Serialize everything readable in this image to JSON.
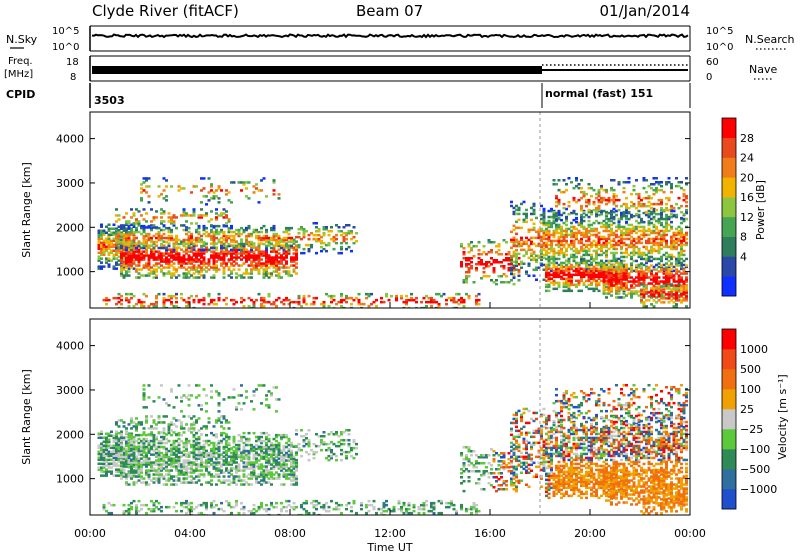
{
  "header": {
    "station": "Clyde River (fitACF)",
    "beam": "Beam 07",
    "date": "01/Jan/2014"
  },
  "param_panels": {
    "nsky_label": "N.Sky",
    "nsearch_label": "N.Search",
    "nsky_ticks": [
      "10^5",
      "10^0"
    ],
    "nsearch_ticks": [
      "10^5",
      "10^0"
    ],
    "freq_label_1": "Freq.",
    "freq_label_2": "[MHz]",
    "freq_ticks": [
      "18",
      "8"
    ],
    "nave_label": "Nave",
    "nave_ticks": [
      "60",
      "0"
    ],
    "cpid_label": "CPID",
    "cpid_value_1": "3503",
    "cpid_value_2": "normal (fast) 151",
    "cpid_change_hour": 18.0
  },
  "chart_data": [
    {
      "type": "heatmap",
      "panel": "power",
      "xlabel": "",
      "ylabel": "Slant Range [km]",
      "xlim": [
        0,
        24
      ],
      "ylim": [
        180,
        4600
      ],
      "yticks": [
        "4000",
        "3000",
        "2000",
        "1000"
      ],
      "colorbar": {
        "label": "Power [dB]",
        "ticks": [
          "28",
          "24",
          "20",
          "16",
          "12",
          "8",
          "4"
        ],
        "colors": [
          "#1030ff",
          "#2a48a8",
          "#2e7d5c",
          "#45a552",
          "#8cc63f",
          "#f0b400",
          "#f07d1a",
          "#e84a1e",
          "#ff0000"
        ]
      }
    },
    {
      "type": "heatmap",
      "panel": "velocity",
      "xlabel": "Time UT",
      "ylabel": "Slant Range [km]",
      "xlim": [
        0,
        24
      ],
      "ylim": [
        180,
        4600
      ],
      "yticks": [
        "4000",
        "3000",
        "2000",
        "1000"
      ],
      "xticks": [
        "00:00",
        "04:00",
        "08:00",
        "12:00",
        "16:00",
        "20:00",
        "00:00"
      ],
      "colorbar": {
        "label": "Velocity [m s⁻¹]",
        "ticks": [
          "1000",
          "500",
          "100",
          "25",
          "−25",
          "−100",
          "−500",
          "−1000"
        ],
        "colors": [
          "#1f4fcc",
          "#2e6f9e",
          "#2e8b57",
          "#5cc83c",
          "#c8c8c8",
          "#f0a000",
          "#f07010",
          "#ef4a18",
          "#ff0000"
        ]
      }
    }
  ]
}
